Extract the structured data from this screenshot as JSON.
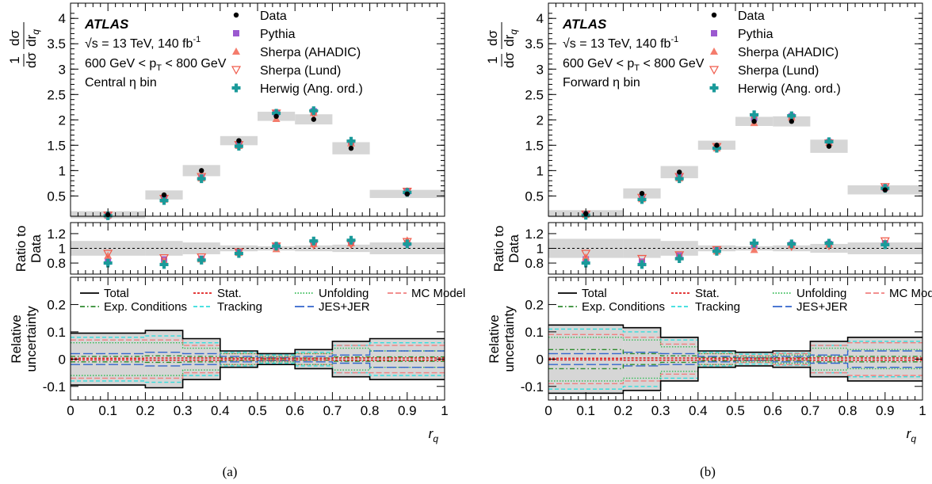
{
  "figure": {
    "panel_captions": [
      "(a)",
      "(b)"
    ],
    "legend_mc": {
      "data": "Data",
      "pythia": "Pythia",
      "sherpa_ahadic": "Sherpa (AHADIC)",
      "sherpa_lund": "Sherpa (Lund)",
      "herwig": "Herwig (Ang. ord.)"
    },
    "legend_unc": {
      "total": "Total",
      "stat": "Stat.",
      "unfolding": "Unfolding",
      "mc_model": "MC Model",
      "exp": "Exp. Conditions",
      "tracking": "Tracking",
      "jes": "JES+JER"
    },
    "colors": {
      "data": "#000000",
      "pythia": "#9b59d0",
      "sherpa_ahadic": "#f47c6c",
      "sherpa_lund": "#f05a4a",
      "herwig": "#1a9a9a",
      "band": "#d6d6d6",
      "stat": "#e02020",
      "unfolding": "#33bb55",
      "mc_model": "#f08080",
      "exp": "#2e8b2e",
      "tracking": "#33dddd",
      "jes": "#3366cc"
    }
  },
  "chart_data": [
    {
      "type": "scatter",
      "panel_label": "(a)",
      "atlas_label": "ATLAS",
      "energy_label": "√s = 13 TeV, 140 fb",
      "energy_sup": "-1",
      "pt_label_left": "600 GeV < p",
      "pt_label_sub": "T",
      "pt_label_right": " < 800 GeV",
      "region_label": "Central η bin",
      "ylabel_top": "1/σ dσ/dr_q",
      "ylabel_ratio": "Ratio to Data",
      "ylabel_unc": "Relative uncertainty",
      "xlabel": "r_q",
      "xlim": [
        0,
        1
      ],
      "ylim_top": [
        0.1,
        4.3
      ],
      "ylim_ratio": [
        0.65,
        1.35
      ],
      "ylim_unc": [
        -0.15,
        0.3
      ],
      "x_ticks": [
        "0",
        "0.1",
        "0.2",
        "0.3",
        "0.4",
        "0.5",
        "0.6",
        "0.7",
        "0.8",
        "0.9",
        "1"
      ],
      "y_ticks_top": [
        "0.5",
        "1",
        "1.5",
        "2",
        "2.5",
        "3",
        "3.5",
        "4"
      ],
      "y_ticks_ratio": [
        "0.8",
        "1",
        "1.2"
      ],
      "y_ticks_unc": [
        "-0.1",
        "0",
        "0.1",
        "0.2"
      ],
      "bin_edges": [
        0,
        0.2,
        0.3,
        0.4,
        0.5,
        0.6,
        0.7,
        0.8,
        1.0
      ],
      "x": [
        0.1,
        0.25,
        0.35,
        0.45,
        0.55,
        0.65,
        0.75,
        0.9
      ],
      "data": [
        0.13,
        0.52,
        1.0,
        1.59,
        2.07,
        2.01,
        1.44,
        0.54
      ],
      "band_half": [
        0.03,
        0.05,
        0.07,
        0.05,
        0.05,
        0.06,
        0.08,
        0.04
      ],
      "series": [
        {
          "name": "Pythia",
          "values": [
            0.11,
            0.44,
            0.86,
            1.5,
            2.14,
            2.17,
            1.55,
            0.58
          ]
        },
        {
          "name": "Sherpa (AHADIC)",
          "values": [
            0.12,
            0.43,
            0.85,
            1.49,
            2.02,
            2.14,
            1.54,
            0.6
          ]
        },
        {
          "name": "Sherpa (Lund)",
          "values": [
            0.12,
            0.45,
            0.88,
            1.51,
            2.13,
            2.12,
            1.53,
            0.59
          ]
        },
        {
          "name": "Herwig (Ang. ord.)",
          "values": [
            0.11,
            0.41,
            0.84,
            1.48,
            2.13,
            2.18,
            1.58,
            0.57
          ]
        }
      ],
      "ratios": [
        [
          0.82,
          0.85,
          0.86,
          0.95,
          1.03,
          1.08,
          1.08,
          1.07
        ],
        [
          0.9,
          0.83,
          0.85,
          0.94,
          0.99,
          1.06,
          1.07,
          1.11
        ],
        [
          0.93,
          0.87,
          0.88,
          0.95,
          1.03,
          1.05,
          1.06,
          1.09
        ],
        [
          0.8,
          0.78,
          0.84,
          0.93,
          1.03,
          1.1,
          1.11,
          1.06
        ]
      ],
      "ratio_band": [
        0.1,
        0.1,
        0.08,
        0.04,
        0.03,
        0.04,
        0.05,
        0.08
      ],
      "unc": {
        "total": [
          0.095,
          0.105,
          0.075,
          0.03,
          0.02,
          0.035,
          0.065,
          0.075
        ],
        "stat": [
          0.003,
          0.004,
          0.004,
          0.003,
          0.003,
          0.003,
          0.004,
          0.004
        ],
        "unfolding": [
          0.06,
          0.06,
          0.04,
          0.02,
          0.01,
          0.02,
          0.04,
          0.03
        ],
        "mc_model": [
          0.07,
          0.07,
          0.05,
          0.02,
          0.01,
          0.02,
          0.05,
          0.05
        ],
        "exp": [
          0.01,
          0.012,
          0.01,
          0.005,
          0.003,
          0.004,
          0.008,
          0.008
        ],
        "tracking": [
          0.08,
          0.085,
          0.06,
          0.025,
          0.015,
          0.025,
          0.05,
          0.06
        ],
        "jes": [
          0.02,
          0.025,
          0.02,
          0.01,
          0.005,
          0.01,
          0.015,
          0.03
        ]
      }
    },
    {
      "type": "scatter",
      "panel_label": "(b)",
      "atlas_label": "ATLAS",
      "energy_label": "√s = 13 TeV, 140 fb",
      "energy_sup": "-1",
      "pt_label_left": "600 GeV < p",
      "pt_label_sub": "T",
      "pt_label_right": " < 800 GeV",
      "region_label": "Forward η bin",
      "ylabel_top": "1/σ dσ/dr_q",
      "ylabel_ratio": "Ratio to Data",
      "ylabel_unc": "Relative uncertainty",
      "xlabel": "r_q",
      "xlim": [
        0,
        1
      ],
      "ylim_top": [
        0.1,
        4.3
      ],
      "ylim_ratio": [
        0.65,
        1.35
      ],
      "ylim_unc": [
        -0.15,
        0.3
      ],
      "x_ticks": [
        "0",
        "0.1",
        "0.2",
        "0.3",
        "0.4",
        "0.5",
        "0.6",
        "0.7",
        "0.8",
        "0.9",
        "1"
      ],
      "y_ticks_top": [
        "0.5",
        "1",
        "1.5",
        "2",
        "2.5",
        "3",
        "3.5",
        "4"
      ],
      "y_ticks_ratio": [
        "0.8",
        "1",
        "1.2"
      ],
      "y_ticks_unc": [
        "-0.1",
        "0",
        "0.1",
        "0.2"
      ],
      "bin_edges": [
        0,
        0.2,
        0.3,
        0.4,
        0.5,
        0.6,
        0.7,
        0.8,
        1.0
      ],
      "x": [
        0.1,
        0.25,
        0.35,
        0.45,
        0.55,
        0.65,
        0.75,
        0.9
      ],
      "data": [
        0.15,
        0.55,
        0.97,
        1.5,
        1.97,
        1.97,
        1.48,
        0.62
      ],
      "band_half": [
        0.03,
        0.06,
        0.08,
        0.05,
        0.05,
        0.06,
        0.09,
        0.05
      ],
      "series": [
        {
          "name": "Pythia",
          "values": [
            0.13,
            0.45,
            0.87,
            1.45,
            2.04,
            2.07,
            1.56,
            0.66
          ]
        },
        {
          "name": "Sherpa (AHADIC)",
          "values": [
            0.13,
            0.44,
            0.85,
            1.44,
            1.94,
            2.05,
            1.55,
            0.67
          ]
        },
        {
          "name": "Sherpa (Lund)",
          "values": [
            0.14,
            0.47,
            0.88,
            1.47,
            2.05,
            2.03,
            1.54,
            0.68
          ]
        },
        {
          "name": "Herwig (Ang. ord.)",
          "values": [
            0.12,
            0.43,
            0.84,
            1.44,
            2.1,
            2.08,
            1.57,
            0.65
          ]
        }
      ],
      "ratios": [
        [
          0.85,
          0.82,
          0.9,
          0.97,
          1.04,
          1.05,
          1.06,
          1.07
        ],
        [
          0.88,
          0.8,
          0.88,
          0.96,
          0.98,
          1.04,
          1.05,
          1.08
        ],
        [
          0.93,
          0.86,
          0.91,
          0.98,
          1.04,
          1.03,
          1.04,
          1.1
        ],
        [
          0.8,
          0.78,
          0.86,
          0.96,
          1.07,
          1.06,
          1.07,
          1.05
        ]
      ],
      "ratio_band": [
        0.13,
        0.13,
        0.1,
        0.04,
        0.03,
        0.04,
        0.06,
        0.08
      ],
      "unc": {
        "total": [
          0.125,
          0.115,
          0.08,
          0.03,
          0.025,
          0.03,
          0.065,
          0.08
        ],
        "stat": [
          0.003,
          0.004,
          0.004,
          0.003,
          0.003,
          0.003,
          0.004,
          0.004
        ],
        "unfolding": [
          0.08,
          0.07,
          0.045,
          0.02,
          0.01,
          0.015,
          0.04,
          0.035
        ],
        "mc_model": [
          0.09,
          0.08,
          0.055,
          0.02,
          0.012,
          0.02,
          0.05,
          0.06
        ],
        "exp": [
          0.035,
          0.02,
          0.012,
          0.006,
          0.004,
          0.005,
          0.01,
          0.01
        ],
        "tracking": [
          0.11,
          0.1,
          0.07,
          0.025,
          0.018,
          0.022,
          0.05,
          0.065
        ],
        "jes": [
          0.02,
          0.025,
          0.02,
          0.01,
          0.005,
          0.01,
          0.015,
          0.03
        ]
      }
    }
  ]
}
